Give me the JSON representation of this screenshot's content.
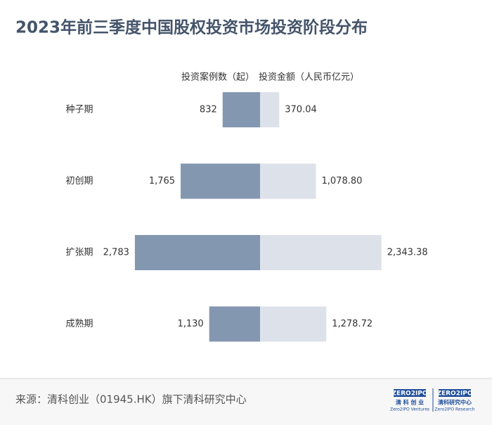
{
  "chart_data": {
    "type": "butterfly",
    "title": "2023年前三季度中国股权投资市场投资阶段分布",
    "categories": [
      "种子期",
      "初创期",
      "扩张期",
      "成熟期"
    ],
    "series": [
      {
        "name": "投资案例数（起）",
        "color": "#8497b0",
        "values": [
          832,
          1765,
          2783,
          1130
        ],
        "value_labels": [
          "832",
          "1,765",
          "2,783",
          "1,130"
        ]
      },
      {
        "name": "投资金额（人民币亿元）",
        "color": "#dde2ea",
        "values": [
          370.04,
          1078.8,
          2343.38,
          1278.72
        ],
        "value_labels": [
          "370.04",
          "1,078.80",
          "2,343.38",
          "1,278.72"
        ]
      }
    ],
    "source": "来源：清科创业（01945.HK）旗下清科研究中心"
  },
  "logos": [
    {
      "mark": "ZERO2IPO",
      "name": "清 科 创 业",
      "sub": "Zero2IPO Ventures"
    },
    {
      "mark": "ZERO2IPO",
      "name": "清科研究中心",
      "sub": "Zero2IPO Research"
    }
  ]
}
